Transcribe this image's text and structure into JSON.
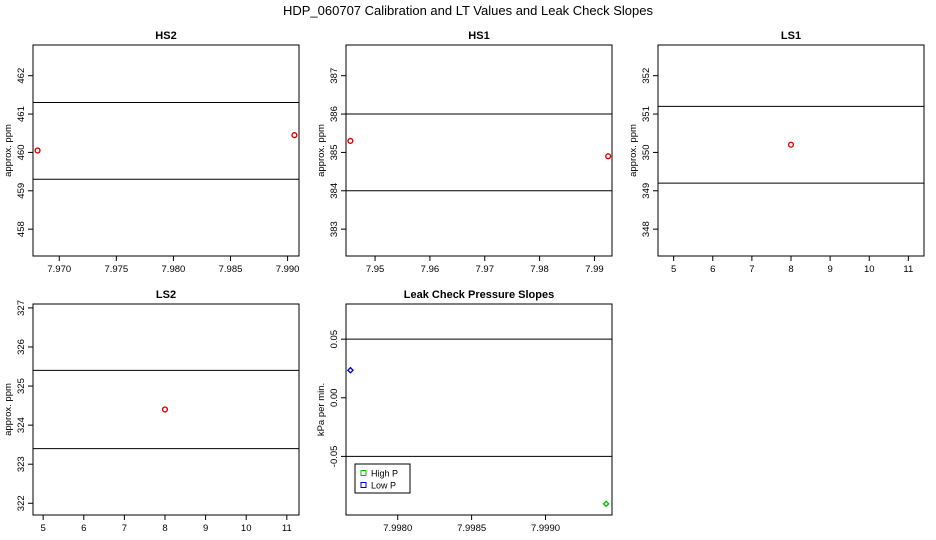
{
  "figure": {
    "title": "HDP_060707  Calibration and LT Values and Leak Check Slopes"
  },
  "chart_data": [
    {
      "id": "hs2",
      "type": "scatter",
      "title": "HS2",
      "xlabel": "",
      "ylabel": "approx. ppm",
      "xlim": [
        7.9677,
        7.991
      ],
      "ylim": [
        457.3,
        462.8
      ],
      "xticks": [
        {
          "value": 7.97,
          "label": "7.970"
        },
        {
          "value": 7.975,
          "label": "7.975"
        },
        {
          "value": 7.98,
          "label": "7.980"
        },
        {
          "value": 7.985,
          "label": "7.985"
        },
        {
          "value": 7.99,
          "label": "7.990"
        }
      ],
      "yticks": [
        {
          "value": 458,
          "label": "458"
        },
        {
          "value": 459,
          "label": "459"
        },
        {
          "value": 460,
          "label": "460"
        },
        {
          "value": 461,
          "label": "461"
        },
        {
          "value": 462,
          "label": "462"
        }
      ],
      "hlines": [
        459.3,
        461.3
      ],
      "series": [
        {
          "color": "#e00000",
          "marker": "circle",
          "points": [
            {
              "x": 7.9681,
              "y": 460.05
            },
            {
              "x": 7.9906,
              "y": 460.45
            }
          ]
        }
      ]
    },
    {
      "id": "hs1",
      "type": "scatter",
      "title": "HS1",
      "xlabel": "",
      "ylabel": "approx. ppm",
      "xlim": [
        7.9447,
        7.9932
      ],
      "ylim": [
        382.3,
        387.8
      ],
      "xticks": [
        {
          "value": 7.95,
          "label": "7.95"
        },
        {
          "value": 7.96,
          "label": "7.96"
        },
        {
          "value": 7.97,
          "label": "7.97"
        },
        {
          "value": 7.98,
          "label": "7.98"
        },
        {
          "value": 7.99,
          "label": "7.99"
        }
      ],
      "yticks": [
        {
          "value": 383,
          "label": "383"
        },
        {
          "value": 384,
          "label": "384"
        },
        {
          "value": 385,
          "label": "385"
        },
        {
          "value": 386,
          "label": "386"
        },
        {
          "value": 387,
          "label": "387"
        }
      ],
      "hlines": [
        384.0,
        386.0
      ],
      "series": [
        {
          "color": "#e00000",
          "marker": "circle",
          "points": [
            {
              "x": 7.9455,
              "y": 385.3
            },
            {
              "x": 7.9925,
              "y": 384.9
            }
          ]
        }
      ]
    },
    {
      "id": "ls1",
      "type": "scatter",
      "title": "LS1",
      "xlabel": "",
      "ylabel": "approx. ppm",
      "xlim": [
        4.6,
        11.4
      ],
      "ylim": [
        347.3,
        352.8
      ],
      "xticks": [
        {
          "value": 5,
          "label": "5"
        },
        {
          "value": 6,
          "label": "6"
        },
        {
          "value": 7,
          "label": "7"
        },
        {
          "value": 8,
          "label": "8"
        },
        {
          "value": 9,
          "label": "9"
        },
        {
          "value": 10,
          "label": "10"
        },
        {
          "value": 11,
          "label": "11"
        }
      ],
      "yticks": [
        {
          "value": 348,
          "label": "348"
        },
        {
          "value": 349,
          "label": "349"
        },
        {
          "value": 350,
          "label": "350"
        },
        {
          "value": 351,
          "label": "351"
        },
        {
          "value": 352,
          "label": "352"
        }
      ],
      "hlines": [
        349.2,
        351.2
      ],
      "series": [
        {
          "color": "#e00000",
          "marker": "circle",
          "points": [
            {
              "x": 8.0,
              "y": 350.2
            }
          ]
        }
      ]
    },
    {
      "id": "ls2",
      "type": "scatter",
      "title": "LS2",
      "xlabel": "",
      "ylabel": "approx. ppm",
      "xlim": [
        4.75,
        11.3
      ],
      "ylim": [
        321.7,
        327.1
      ],
      "xticks": [
        {
          "value": 5,
          "label": "5"
        },
        {
          "value": 6,
          "label": "6"
        },
        {
          "value": 7,
          "label": "7"
        },
        {
          "value": 8,
          "label": "8"
        },
        {
          "value": 9,
          "label": "9"
        },
        {
          "value": 10,
          "label": "10"
        },
        {
          "value": 11,
          "label": "11"
        }
      ],
      "yticks": [
        {
          "value": 322,
          "label": "322"
        },
        {
          "value": 323,
          "label": "323"
        },
        {
          "value": 324,
          "label": "324"
        },
        {
          "value": 325,
          "label": "325"
        },
        {
          "value": 326,
          "label": "326"
        },
        {
          "value": 327,
          "label": "327"
        }
      ],
      "hlines": [
        323.4,
        325.4
      ],
      "series": [
        {
          "color": "#e00000",
          "marker": "circle",
          "points": [
            {
              "x": 8.0,
              "y": 324.4
            }
          ]
        }
      ]
    },
    {
      "id": "leak",
      "type": "scatter",
      "title": "Leak Check Pressure Slopes",
      "xlabel": "",
      "ylabel": "kPa per min.",
      "xlim": [
        7.99765,
        7.99945
      ],
      "ylim": [
        -0.1,
        0.08
      ],
      "xticks": [
        {
          "value": 7.998,
          "label": "7.9980"
        },
        {
          "value": 7.9985,
          "label": "7.9985"
        },
        {
          "value": 7.999,
          "label": "7.9990"
        }
      ],
      "yticks": [
        {
          "value": -0.05,
          "label": "-0.05"
        },
        {
          "value": 0.0,
          "label": "0.00"
        },
        {
          "value": 0.05,
          "label": "0.05"
        }
      ],
      "hlines": [
        -0.05,
        0.05
      ],
      "series": [
        {
          "name": "High P",
          "color": "#00c000",
          "marker": "diamond",
          "points": [
            {
              "x": 7.99941,
              "y": -0.0905
            }
          ]
        },
        {
          "name": "Low P",
          "color": "#0000c0",
          "marker": "diamond",
          "points": [
            {
              "x": 7.99768,
              "y": 0.0235
            }
          ]
        }
      ],
      "legend": {
        "position": "bottom-left",
        "entries": [
          {
            "label": "High P",
            "color": "#00c000"
          },
          {
            "label": "Low P",
            "color": "#0000c0"
          }
        ]
      }
    }
  ]
}
